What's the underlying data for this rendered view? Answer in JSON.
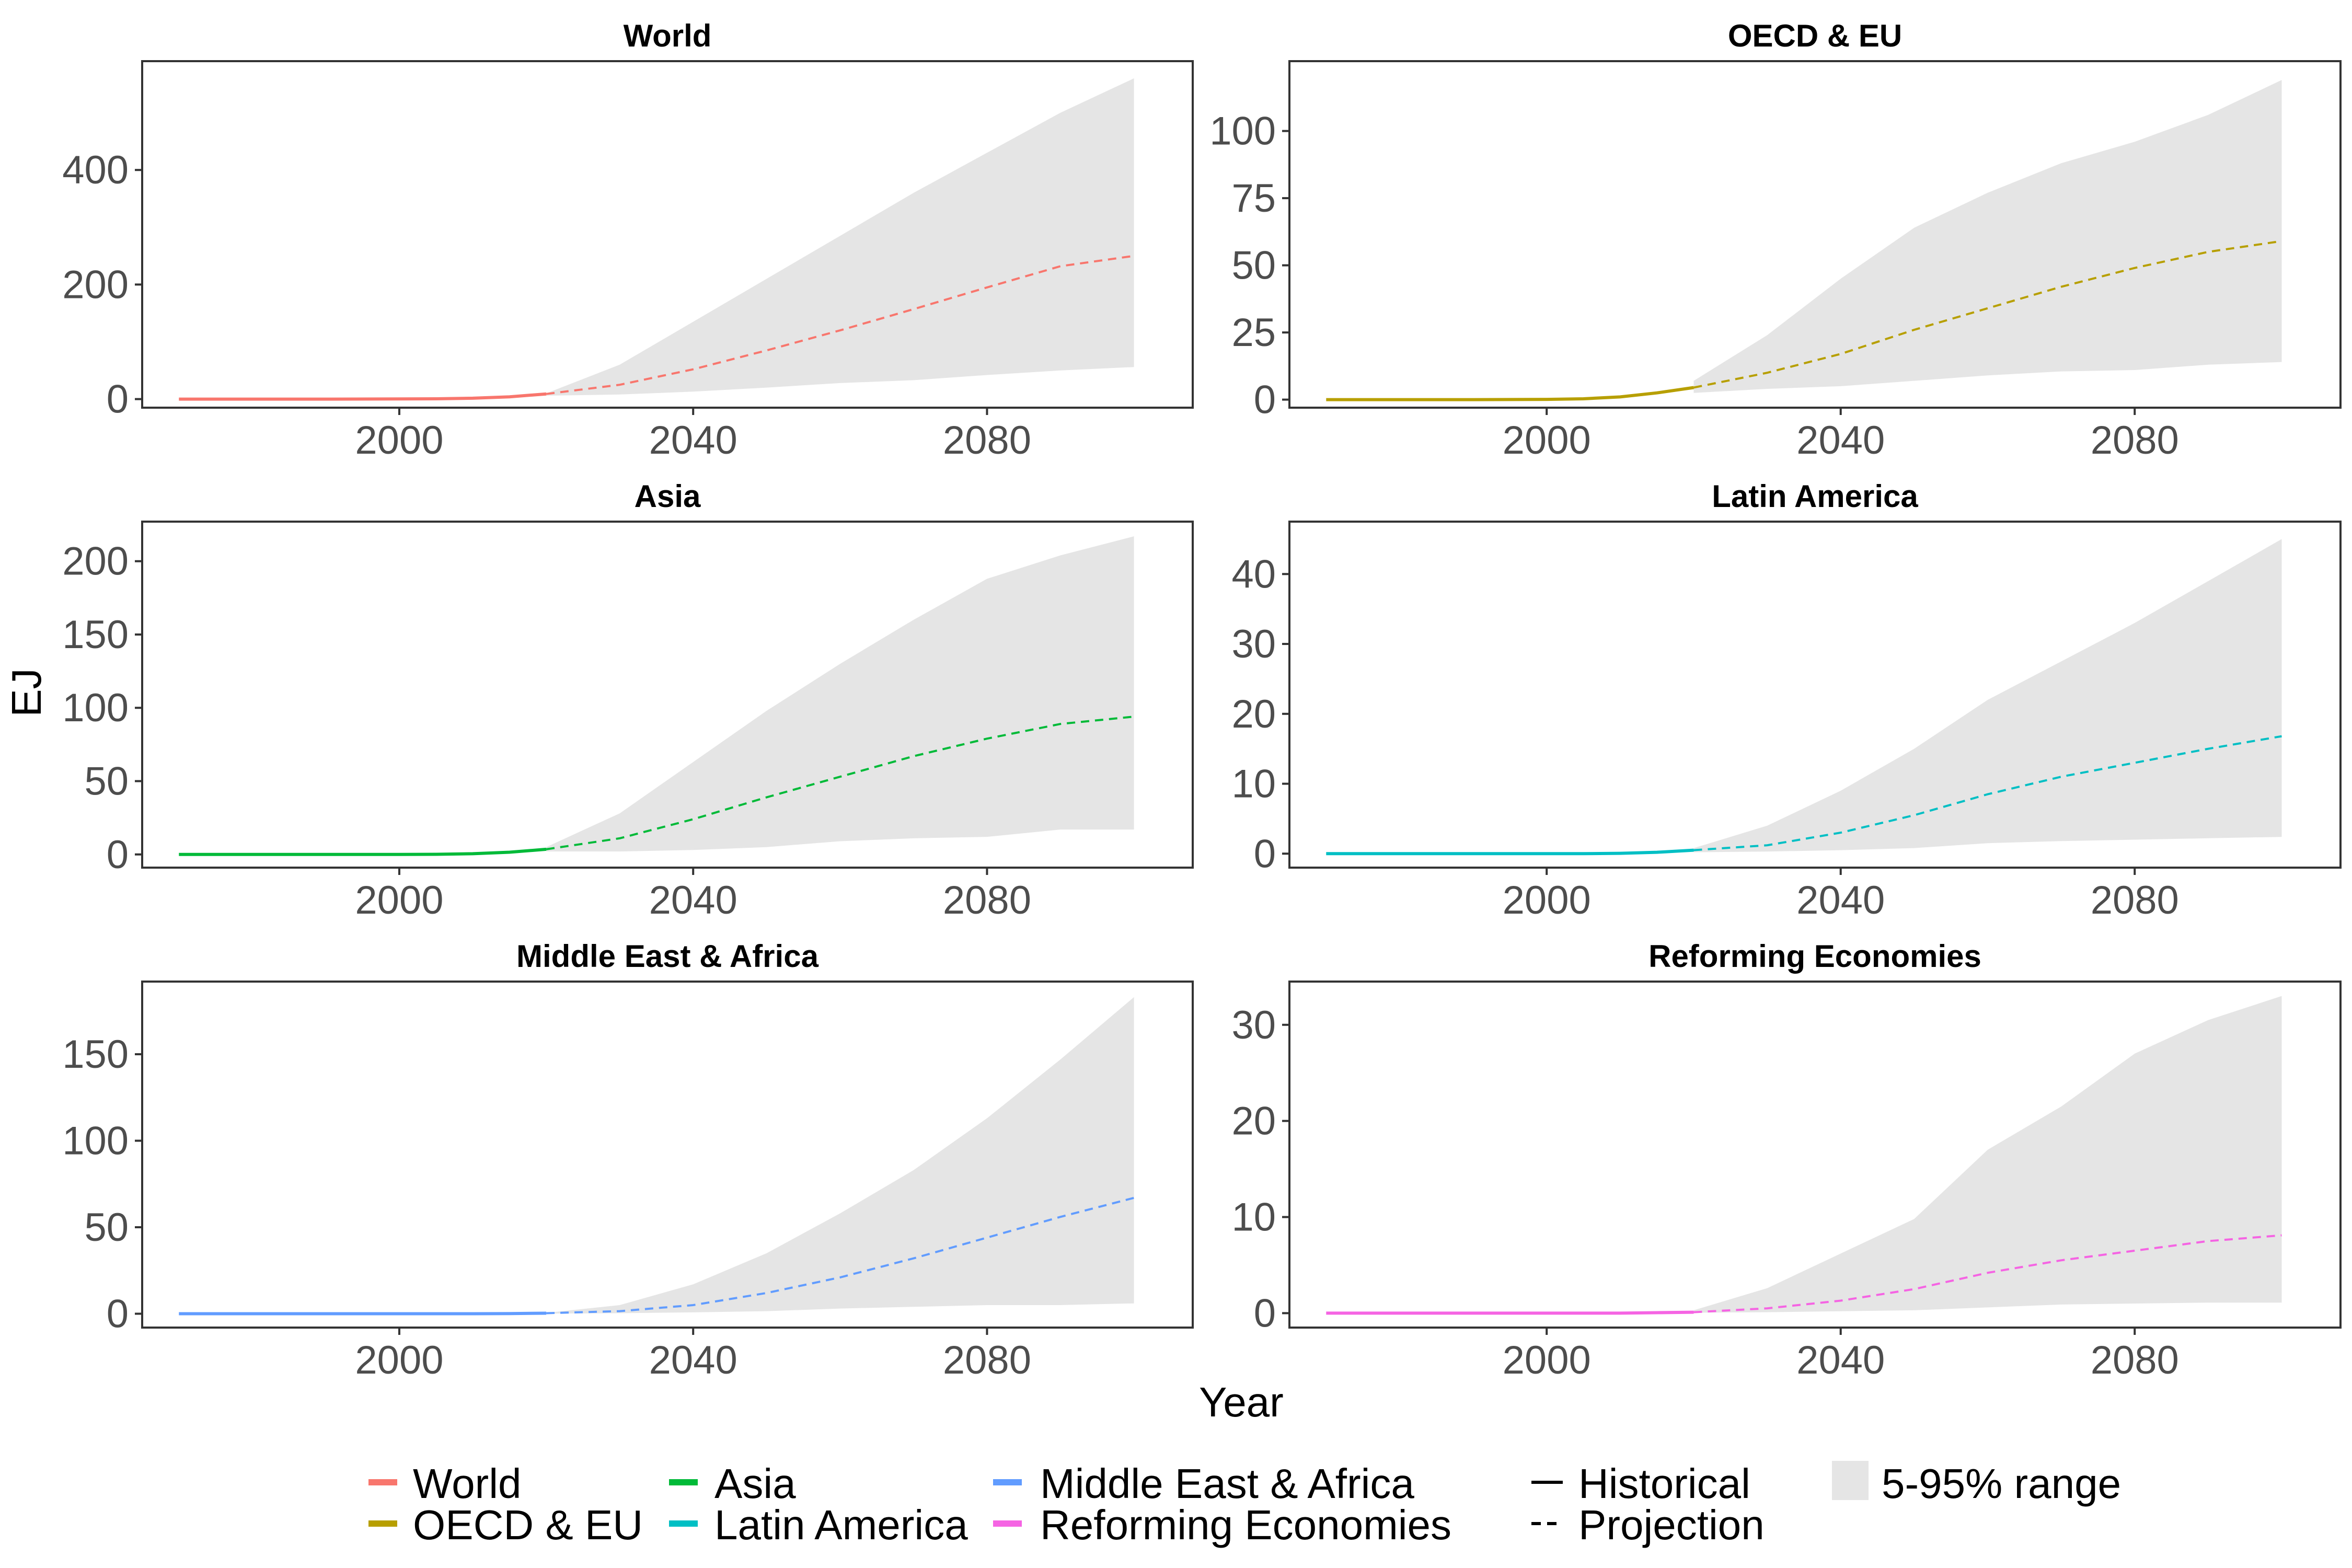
{
  "figure": {
    "xlabel": "Year",
    "ylabel": "EJ"
  },
  "legend": {
    "regions": [
      {
        "label": "World",
        "color": "#F8766D"
      },
      {
        "label": "OECD & EU",
        "color": "#B79F00"
      },
      {
        "label": "Asia",
        "color": "#00BA38"
      },
      {
        "label": "Latin America",
        "color": "#00BFC4"
      },
      {
        "label": "Middle East & Africa",
        "color": "#619CFF"
      },
      {
        "label": "Reforming Economies",
        "color": "#F564E3"
      }
    ],
    "linetypes": [
      {
        "label": "Historical",
        "dash": "solid"
      },
      {
        "label": "Projection",
        "dash": "dashed"
      }
    ],
    "range_label": "5-95% range",
    "range_color": "#E5E5E5"
  },
  "chart_data": [
    {
      "type": "line",
      "title": "World",
      "color": "#F8766D",
      "xlim": [
        1965,
        2108
      ],
      "ylim": [
        -15,
        590
      ],
      "xticks": [
        2000,
        2040,
        2080
      ],
      "yticks": [
        0,
        200,
        400
      ],
      "historical": {
        "x": [
          1970,
          1980,
          1990,
          2000,
          2005,
          2010,
          2015,
          2020
        ],
        "y": [
          0,
          0,
          0,
          0.2,
          0.5,
          1.5,
          4,
          9
        ]
      },
      "projection": {
        "x": [
          2020,
          2030,
          2040,
          2050,
          2060,
          2070,
          2080,
          2090,
          2100
        ],
        "y": [
          9,
          25,
          52,
          85,
          120,
          157,
          195,
          232,
          250
        ]
      },
      "range_upper": {
        "x": [
          2020,
          2030,
          2040,
          2050,
          2060,
          2070,
          2080,
          2090,
          2100
        ],
        "y": [
          10,
          60,
          135,
          210,
          285,
          360,
          430,
          500,
          560
        ]
      },
      "range_lower": {
        "x": [
          2020,
          2030,
          2040,
          2050,
          2060,
          2070,
          2080,
          2090,
          2100
        ],
        "y": [
          6,
          8,
          13,
          20,
          28,
          33,
          42,
          50,
          56
        ]
      }
    },
    {
      "type": "line",
      "title": "OECD & EU",
      "color": "#B79F00",
      "xlim": [
        1965,
        2108
      ],
      "ylim": [
        -3,
        126
      ],
      "xticks": [
        2000,
        2040,
        2080
      ],
      "yticks": [
        0,
        25,
        50,
        75,
        100
      ],
      "historical": {
        "x": [
          1970,
          1980,
          1990,
          2000,
          2005,
          2010,
          2015,
          2020
        ],
        "y": [
          0,
          0,
          0,
          0.1,
          0.3,
          1,
          2.5,
          4.5
        ]
      },
      "projection": {
        "x": [
          2020,
          2030,
          2040,
          2050,
          2060,
          2070,
          2080,
          2090,
          2100
        ],
        "y": [
          4.5,
          10,
          17,
          26,
          34,
          42,
          49,
          55,
          59
        ]
      },
      "range_upper": {
        "x": [
          2020,
          2030,
          2040,
          2050,
          2060,
          2070,
          2080,
          2090,
          2100
        ],
        "y": [
          7,
          24,
          45,
          64,
          77,
          88,
          96,
          106,
          119
        ]
      },
      "range_lower": {
        "x": [
          2020,
          2030,
          2040,
          2050,
          2060,
          2070,
          2080,
          2090,
          2100
        ],
        "y": [
          2.5,
          4,
          5,
          7,
          9,
          10.5,
          11,
          13,
          14
        ]
      }
    },
    {
      "type": "line",
      "title": "Asia",
      "color": "#00BA38",
      "xlim": [
        1965,
        2108
      ],
      "ylim": [
        -9,
        227
      ],
      "xticks": [
        2000,
        2040,
        2080
      ],
      "yticks": [
        0,
        50,
        100,
        150,
        200
      ],
      "historical": {
        "x": [
          1970,
          1980,
          1990,
          2000,
          2005,
          2010,
          2015,
          2020
        ],
        "y": [
          0,
          0,
          0,
          0,
          0.1,
          0.5,
          1.5,
          3.5
        ]
      },
      "projection": {
        "x": [
          2020,
          2030,
          2040,
          2050,
          2060,
          2070,
          2080,
          2090,
          2100
        ],
        "y": [
          3.5,
          11,
          24,
          39,
          53,
          67,
          79,
          89,
          94
        ]
      },
      "range_upper": {
        "x": [
          2020,
          2030,
          2040,
          2050,
          2060,
          2070,
          2080,
          2090,
          2100
        ],
        "y": [
          5,
          28,
          63,
          98,
          130,
          160,
          188,
          204,
          217
        ]
      },
      "range_lower": {
        "x": [
          2020,
          2030,
          2040,
          2050,
          2060,
          2070,
          2080,
          2090,
          2100
        ],
        "y": [
          2,
          2,
          3,
          5,
          9,
          11,
          12,
          17,
          17
        ]
      }
    },
    {
      "type": "line",
      "title": "Latin America",
      "color": "#00BFC4",
      "xlim": [
        1965,
        2108
      ],
      "ylim": [
        -2,
        47.5
      ],
      "xticks": [
        2000,
        2040,
        2080
      ],
      "yticks": [
        0,
        10,
        20,
        30,
        40
      ],
      "historical": {
        "x": [
          1970,
          1980,
          1990,
          2000,
          2005,
          2010,
          2015,
          2020
        ],
        "y": [
          0,
          0,
          0,
          0,
          0,
          0.05,
          0.2,
          0.5
        ]
      },
      "projection": {
        "x": [
          2020,
          2030,
          2040,
          2050,
          2060,
          2070,
          2080,
          2090,
          2100
        ],
        "y": [
          0.5,
          1.2,
          3,
          5.5,
          8.5,
          11,
          13,
          15,
          16.8
        ]
      },
      "range_upper": {
        "x": [
          2020,
          2030,
          2040,
          2050,
          2060,
          2070,
          2080,
          2090,
          2100
        ],
        "y": [
          0.8,
          4,
          9,
          15,
          22,
          27.5,
          33,
          39,
          45
        ]
      },
      "range_lower": {
        "x": [
          2020,
          2030,
          2040,
          2050,
          2060,
          2070,
          2080,
          2090,
          2100
        ],
        "y": [
          0.2,
          0.3,
          0.5,
          0.8,
          1.5,
          1.8,
          2,
          2.2,
          2.4
        ]
      }
    },
    {
      "type": "line",
      "title": "Middle East & Africa",
      "color": "#619CFF",
      "xlim": [
        1965,
        2108
      ],
      "ylim": [
        -8,
        192
      ],
      "xticks": [
        2000,
        2040,
        2080
      ],
      "yticks": [
        0,
        50,
        100,
        150
      ],
      "historical": {
        "x": [
          1970,
          1980,
          1990,
          2000,
          2005,
          2010,
          2015,
          2020
        ],
        "y": [
          0,
          0,
          0,
          0,
          0,
          0,
          0.1,
          0.3
        ]
      },
      "projection": {
        "x": [
          2020,
          2030,
          2040,
          2050,
          2060,
          2070,
          2080,
          2090,
          2100
        ],
        "y": [
          0.3,
          1.5,
          5,
          12,
          21,
          32,
          44,
          56,
          67
        ]
      },
      "range_upper": {
        "x": [
          2020,
          2030,
          2040,
          2050,
          2060,
          2070,
          2080,
          2090,
          2100
        ],
        "y": [
          0.5,
          5,
          17,
          35,
          58,
          83,
          113,
          147,
          183
        ]
      },
      "range_lower": {
        "x": [
          2020,
          2030,
          2040,
          2050,
          2060,
          2070,
          2080,
          2090,
          2100
        ],
        "y": [
          0.1,
          0.3,
          0.8,
          1.5,
          3,
          4,
          5,
          5,
          6
        ]
      }
    },
    {
      "type": "line",
      "title": "Reforming Economies",
      "color": "#F564E3",
      "xlim": [
        1965,
        2108
      ],
      "ylim": [
        -1.5,
        34.5
      ],
      "xticks": [
        2000,
        2040,
        2080
      ],
      "yticks": [
        0,
        10,
        20,
        30
      ],
      "historical": {
        "x": [
          1970,
          1980,
          1990,
          2000,
          2005,
          2010,
          2015,
          2020
        ],
        "y": [
          0,
          0,
          0,
          0,
          0,
          0,
          0.05,
          0.1
        ]
      },
      "projection": {
        "x": [
          2020,
          2030,
          2040,
          2050,
          2060,
          2070,
          2080,
          2090,
          2100
        ],
        "y": [
          0.1,
          0.5,
          1.3,
          2.5,
          4.2,
          5.5,
          6.5,
          7.5,
          8.1
        ]
      },
      "range_upper": {
        "x": [
          2020,
          2030,
          2040,
          2050,
          2060,
          2070,
          2080,
          2090,
          2100
        ],
        "y": [
          0.3,
          2.6,
          6.2,
          9.8,
          17,
          21.5,
          27,
          30.5,
          33
        ]
      },
      "range_lower": {
        "x": [
          2020,
          2030,
          2040,
          2050,
          2060,
          2070,
          2080,
          2090,
          2100
        ],
        "y": [
          0.05,
          0.1,
          0.2,
          0.3,
          0.6,
          0.9,
          1,
          1.1,
          1.1
        ]
      }
    }
  ]
}
